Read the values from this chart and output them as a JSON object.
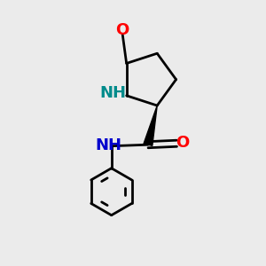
{
  "bg_color": "#ebebeb",
  "bond_color": "#000000",
  "N_color": "#0000cd",
  "O_color": "#ff0000",
  "NH_ring_color": "#008b8b",
  "font_size_atom": 13,
  "line_width": 2.0,
  "fig_size": [
    3.0,
    3.0
  ],
  "dpi": 100,
  "xlim": [
    0,
    10
  ],
  "ylim": [
    0,
    10
  ]
}
